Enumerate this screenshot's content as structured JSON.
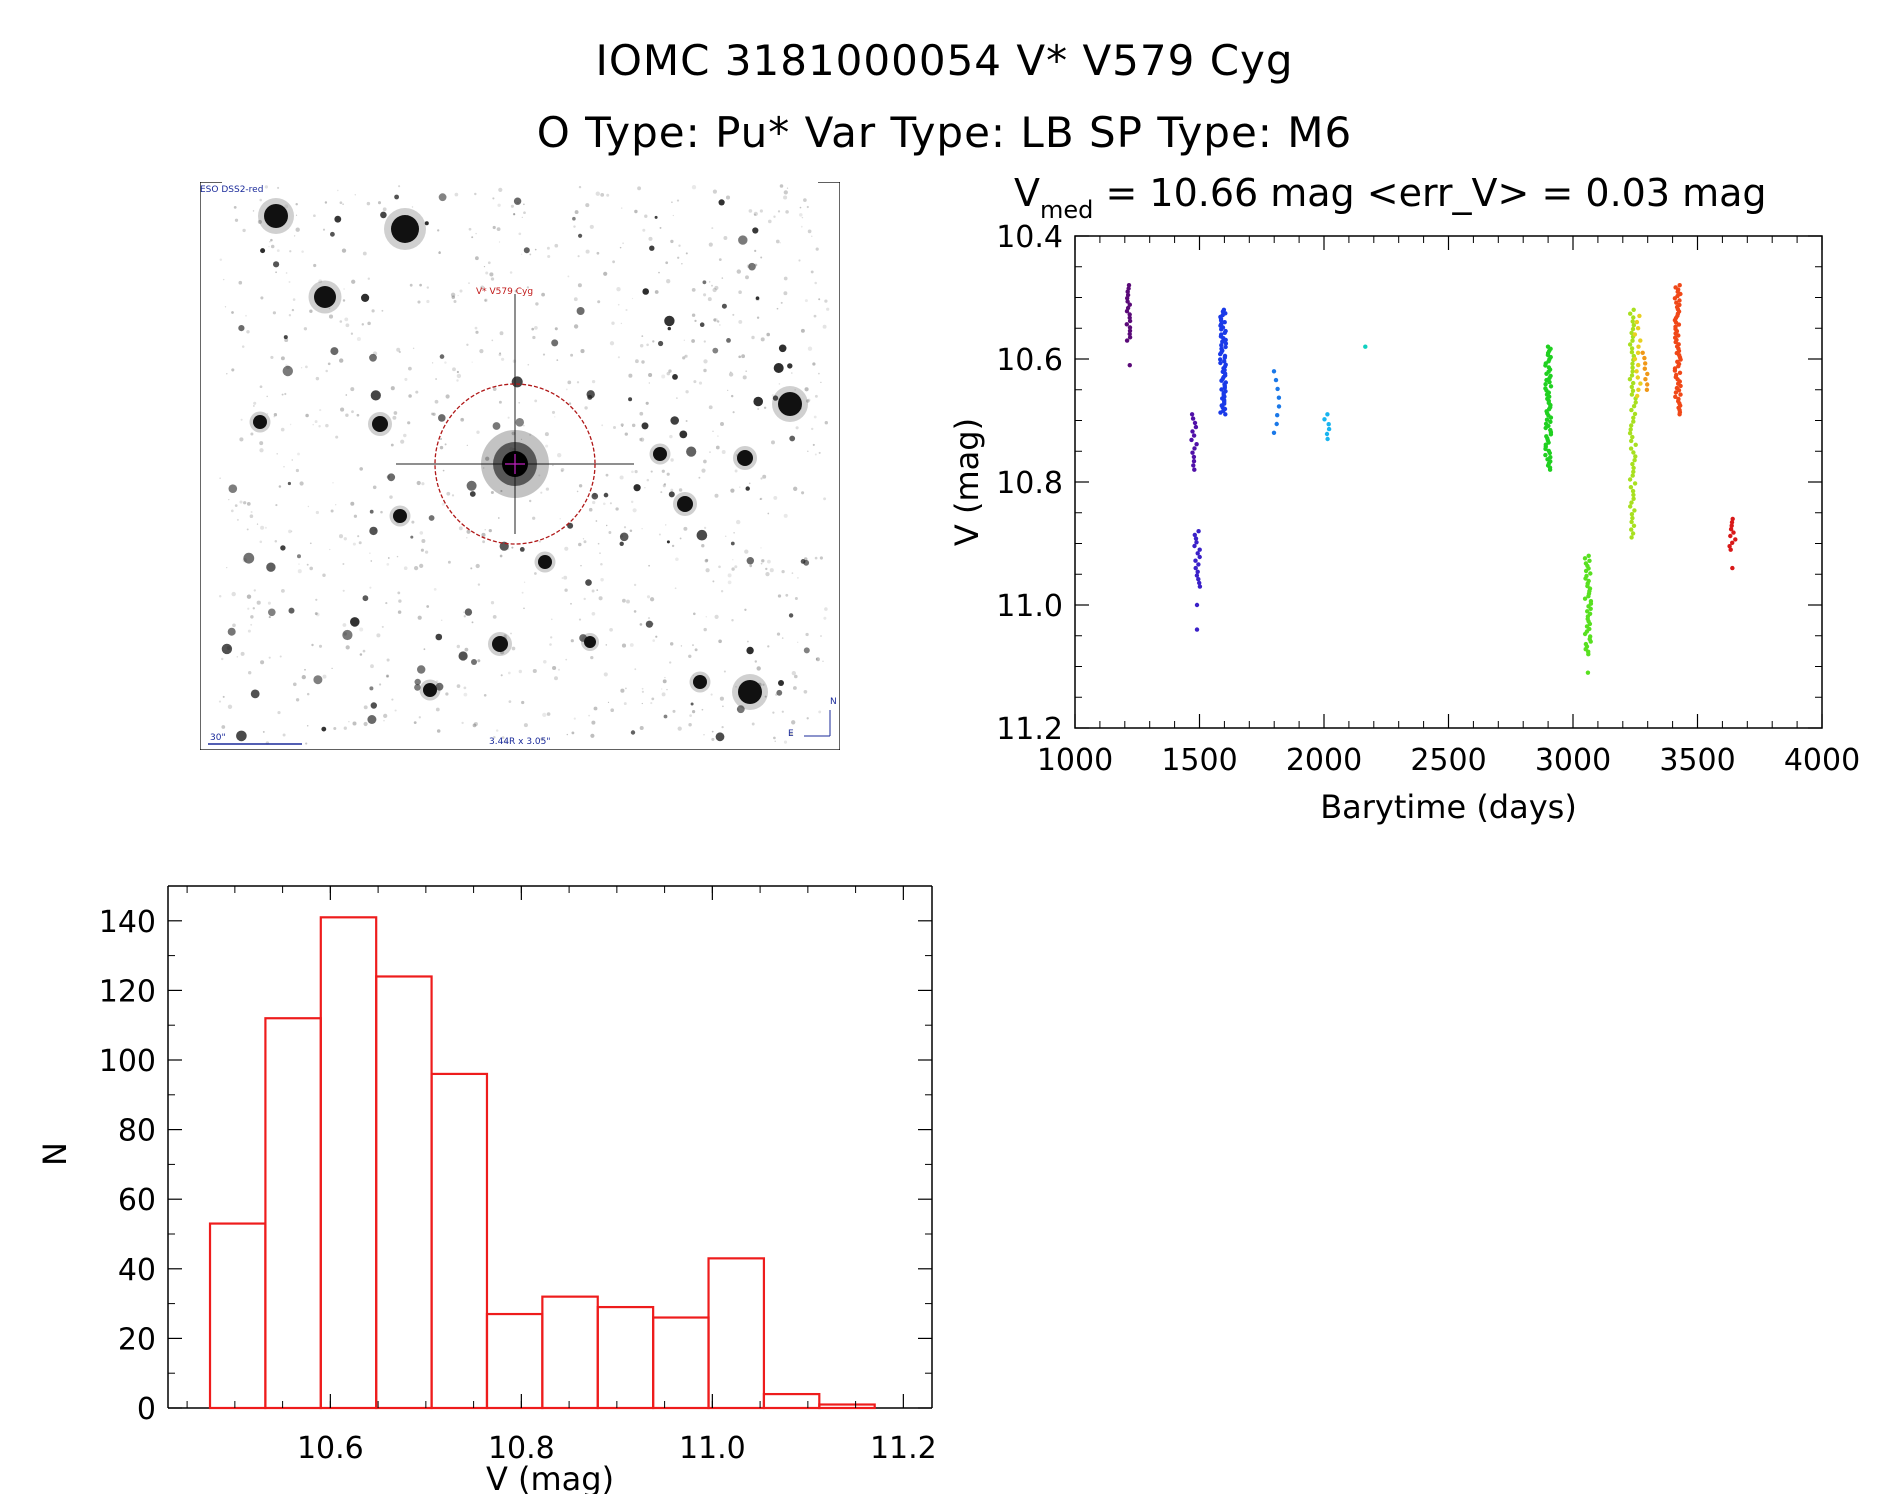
{
  "header": {
    "line1": "IOMC 3181000054    V* V579 Cyg",
    "line2": "O Type: Pu*  Var Type: LB  SP Type: M6"
  },
  "image_panel": {
    "survey_label": "ESO DSS2-red",
    "target_label": "V* V579 Cyg",
    "scale_label": "30\"",
    "fov_label": "3.44R x 3.05\"",
    "north_label": "N",
    "east_label": "E"
  },
  "chart_data": [
    {
      "type": "scatter",
      "title_prefix": "V",
      "title_subscript": "med",
      "title_rest": " = 10.66 mag <err_V> = 0.03 mag",
      "xlabel": "Barytime (days)",
      "ylabel": "V (mag)",
      "xlim": [
        1000,
        4000
      ],
      "ylim": [
        11.2,
        10.4
      ],
      "yreversed": true,
      "xticks": [
        "1000",
        "1500",
        "2000",
        "2500",
        "3000",
        "3500",
        "4000"
      ],
      "yticks": [
        "10.4",
        "10.6",
        "10.8",
        "11.0",
        "11.2"
      ],
      "groups": [
        {
          "x": 1220,
          "ymin": 10.48,
          "ymax": 10.57,
          "extra": [
            10.61
          ],
          "n": 18,
          "color": "#5a0a78"
        },
        {
          "x": 1480,
          "ymin": 10.69,
          "ymax": 10.78,
          "extra": [],
          "n": 14,
          "color": "#5010a8"
        },
        {
          "x": 1490,
          "ymin": 10.88,
          "ymax": 10.97,
          "extra": [
            11.0,
            11.04
          ],
          "n": 16,
          "color": "#3a20c8"
        },
        {
          "x": 1595,
          "ymin": 10.52,
          "ymax": 10.69,
          "extra": [],
          "n": 60,
          "color": "#1a3ae8"
        },
        {
          "x": 1810,
          "ymin": 10.62,
          "ymax": 10.72,
          "extra": [],
          "n": 8,
          "color": "#1a78e8"
        },
        {
          "x": 2010,
          "ymin": 10.69,
          "ymax": 10.73,
          "extra": [],
          "n": 6,
          "color": "#18b4f0"
        },
        {
          "x": 2165,
          "ymin": 10.58,
          "ymax": 10.58,
          "extra": [],
          "n": 1,
          "color": "#10d0c0"
        },
        {
          "x": 2900,
          "ymin": 10.58,
          "ymax": 10.78,
          "extra": [],
          "n": 60,
          "color": "#20d020"
        },
        {
          "x": 3060,
          "ymin": 10.92,
          "ymax": 11.08,
          "extra": [
            11.11
          ],
          "n": 40,
          "color": "#58e020"
        },
        {
          "x": 3240,
          "ymin": 10.52,
          "ymax": 10.89,
          "extra": [],
          "n": 60,
          "color": "#a8e020"
        },
        {
          "x": 3260,
          "ymin": 10.53,
          "ymax": 10.66,
          "extra": [],
          "n": 14,
          "color": "#e8d020"
        },
        {
          "x": 3290,
          "ymin": 10.59,
          "ymax": 10.65,
          "extra": [],
          "n": 8,
          "color": "#f09818"
        },
        {
          "x": 3420,
          "ymin": 10.48,
          "ymax": 10.69,
          "extra": [],
          "n": 60,
          "color": "#f04818"
        },
        {
          "x": 3640,
          "ymin": 10.86,
          "ymax": 10.91,
          "extra": [
            10.94
          ],
          "n": 10,
          "color": "#d81818"
        }
      ]
    },
    {
      "type": "bar",
      "subtype": "histogram",
      "xlabel": "V (mag)",
      "ylabel": "N",
      "xlim": [
        10.43,
        11.23
      ],
      "ylim": [
        0,
        150
      ],
      "xticks": [
        "10.6",
        "10.8",
        "11.0",
        "11.2"
      ],
      "yticks": [
        "0",
        "20",
        "40",
        "60",
        "80",
        "100",
        "120",
        "140"
      ],
      "bin_edges": [
        10.474,
        10.532,
        10.59,
        10.648,
        10.706,
        10.764,
        10.822,
        10.88,
        10.938,
        10.996,
        11.054,
        11.112,
        11.17
      ],
      "values": [
        53,
        112,
        141,
        124,
        96,
        27,
        32,
        29,
        26,
        43,
        4,
        1
      ],
      "color": "#ee1c1c"
    }
  ]
}
